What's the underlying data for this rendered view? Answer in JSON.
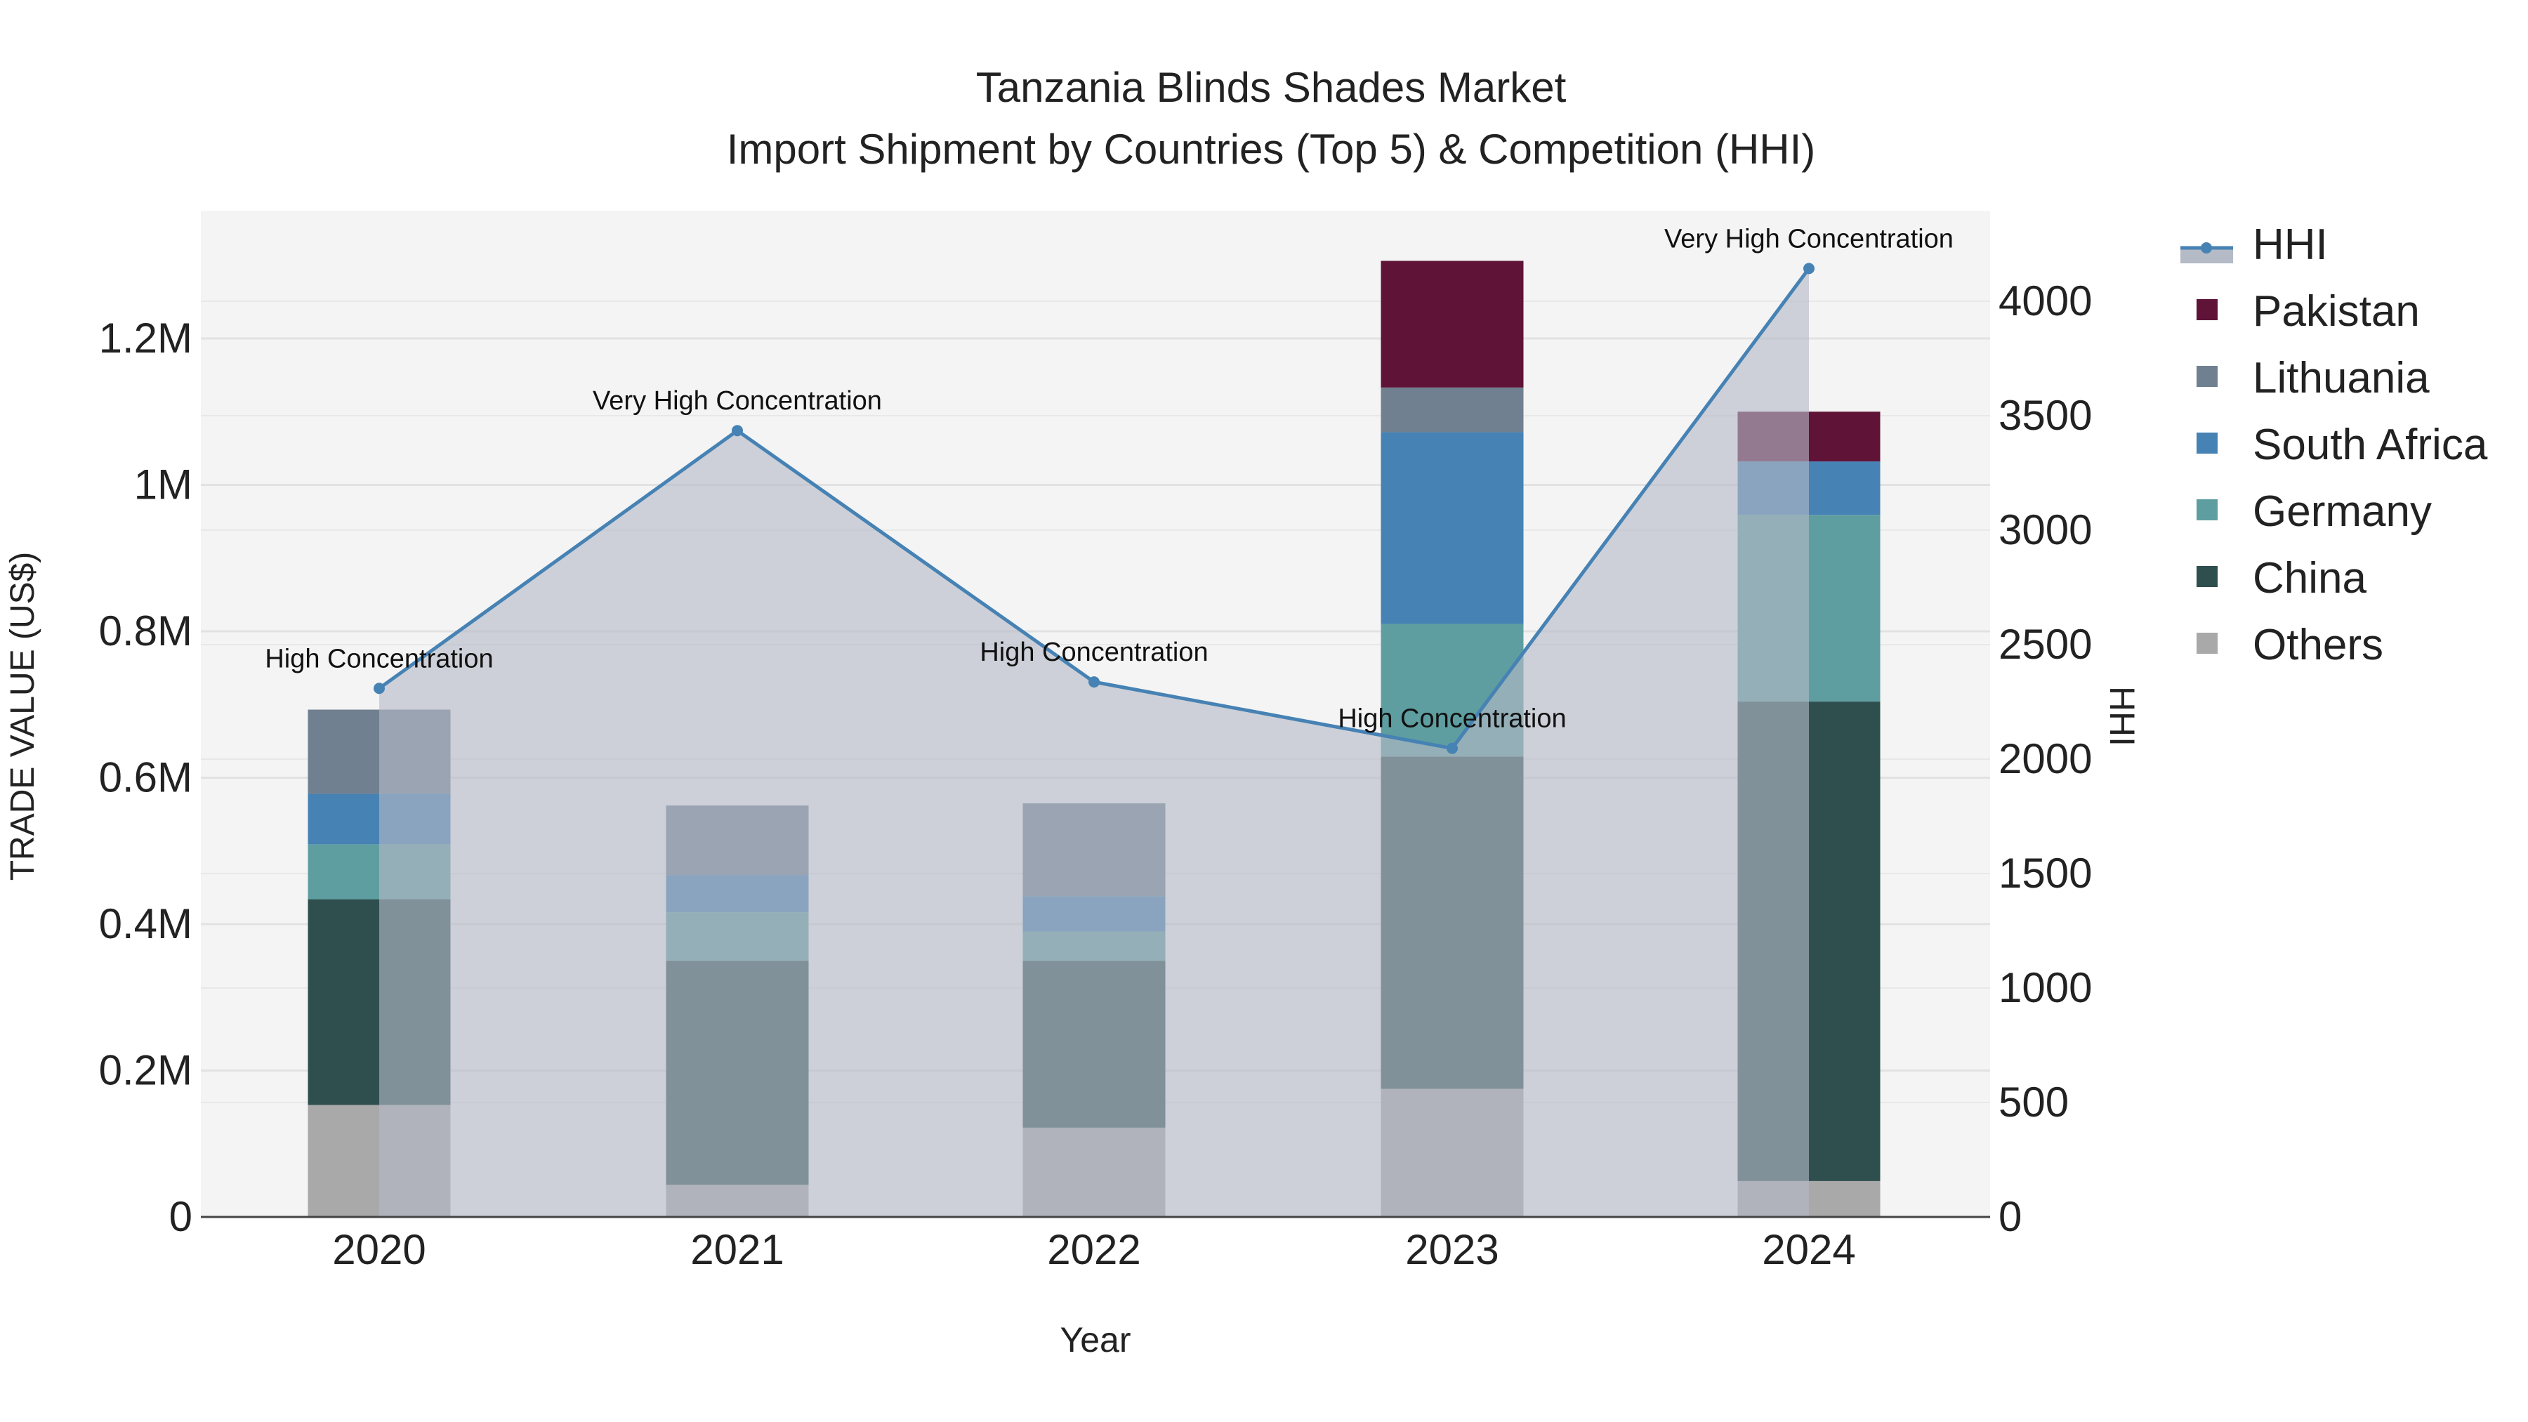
{
  "chart_data": {
    "type": "bar",
    "title": "Tanzania Blinds Shades Market",
    "subtitle": "Import Shipment by Countries (Top 5) & Competition (HHI)",
    "xlabel": "Year",
    "ylabel": "TRADE VALUE (US$)",
    "y2label": "HHI",
    "categories": [
      "2020",
      "2021",
      "2022",
      "2023",
      "2024"
    ],
    "ylim": [
      0,
      1370000
    ],
    "y2lim": [
      0,
      4400
    ],
    "yticks": [
      0,
      200000,
      400000,
      600000,
      800000,
      1000000,
      1200000
    ],
    "ytick_labels": [
      "0",
      "0.2M",
      "0.4M",
      "0.6M",
      "0.8M",
      "1M",
      "1.2M"
    ],
    "y2ticks": [
      0,
      500,
      1000,
      1500,
      2000,
      2500,
      3000,
      3500,
      4000
    ],
    "y2tick_labels": [
      "0",
      "500",
      "1000",
      "1500",
      "2000",
      "2500",
      "3000",
      "3500",
      "4000"
    ],
    "stacked": true,
    "series": [
      {
        "name": "Others",
        "color": "#a9a9a9",
        "values": [
          153000,
          44000,
          122000,
          175000,
          49000
        ]
      },
      {
        "name": "China",
        "color": "#2f4f4f",
        "values": [
          281000,
          306000,
          228000,
          454000,
          655000
        ]
      },
      {
        "name": "Germany",
        "color": "#5f9ea0",
        "values": [
          75000,
          66000,
          40000,
          181000,
          255000
        ]
      },
      {
        "name": "South Africa",
        "color": "#4682b4",
        "values": [
          69000,
          51000,
          48000,
          262000,
          73000
        ]
      },
      {
        "name": "Lithuania",
        "color": "#708090",
        "values": [
          115000,
          95000,
          127000,
          61000,
          0
        ]
      },
      {
        "name": "Pakistan",
        "color": "#5f1337",
        "values": [
          0,
          0,
          0,
          173000,
          68000
        ]
      }
    ],
    "hhi": {
      "name": "HHI",
      "color": "#4682b4",
      "values": [
        2309,
        3435,
        2337,
        2047,
        4143
      ],
      "annotations": [
        "High Concentration",
        "Very High Concentration",
        "High Concentration",
        "High Concentration",
        "Very High Concentration"
      ]
    },
    "legend": {
      "placement": "right",
      "items": [
        "HHI",
        "Pakistan",
        "Lithuania",
        "South Africa",
        "Germany",
        "China",
        "Others"
      ]
    },
    "grid": true
  }
}
